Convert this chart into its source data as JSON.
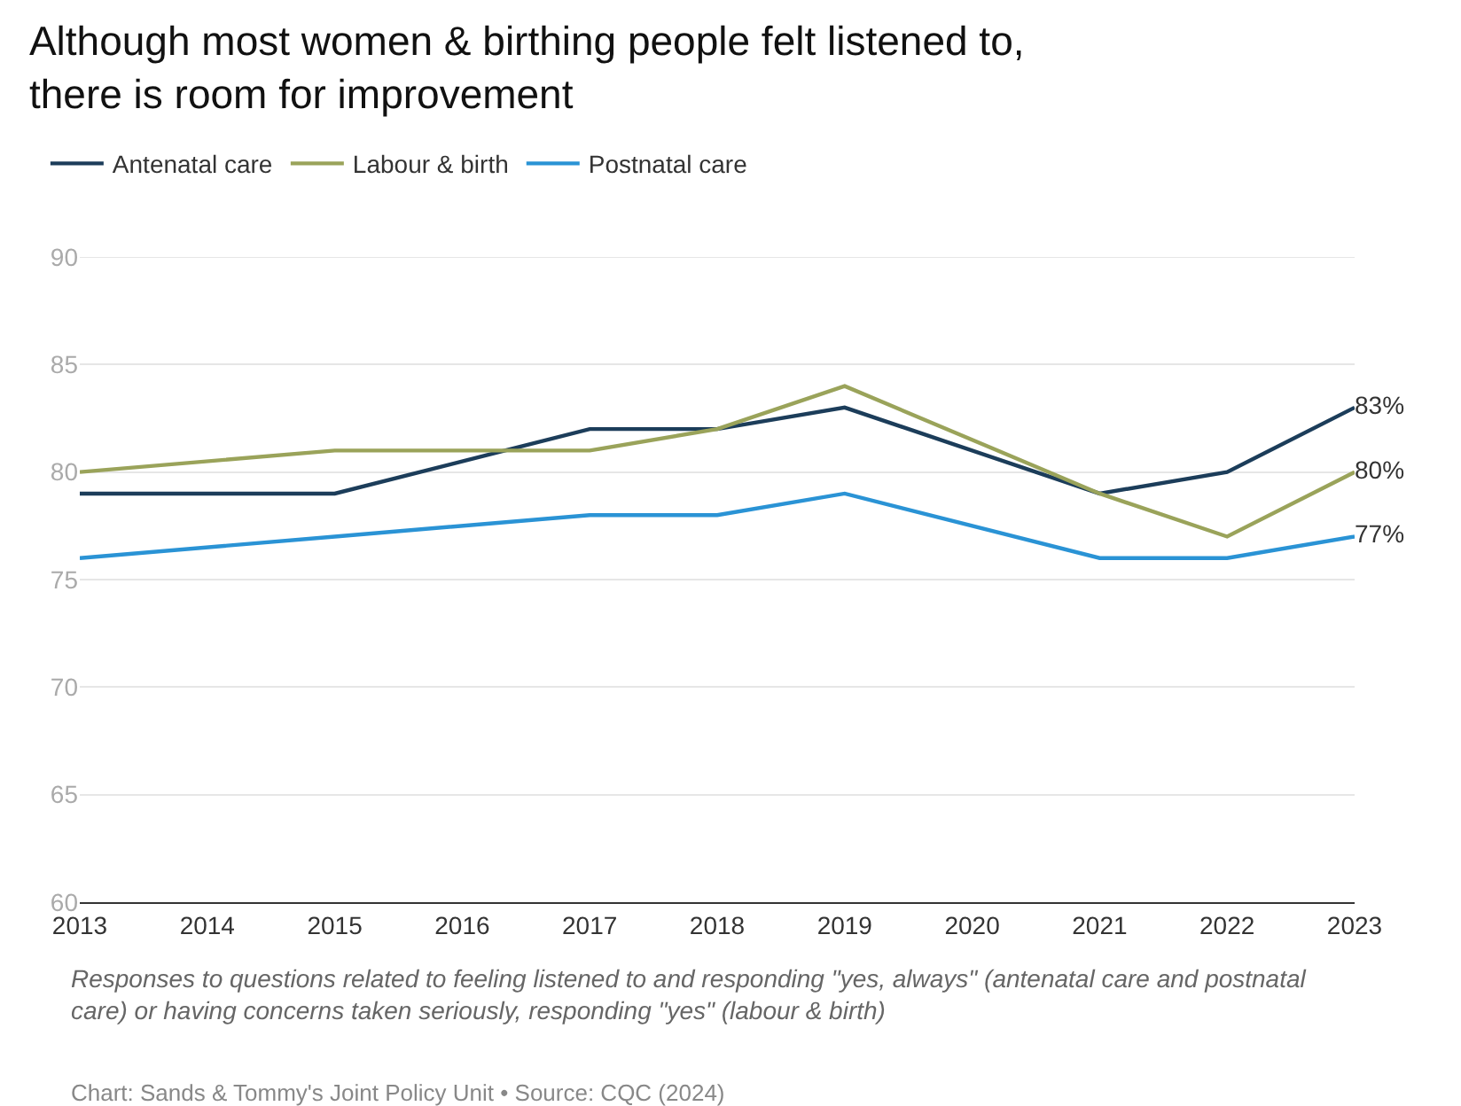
{
  "chart_data": {
    "type": "line",
    "title": "Although most women & birthing people felt listened to,\nthere is room for improvement",
    "x": [
      2013,
      2015,
      2017,
      2018,
      2019,
      2021,
      2022,
      2023
    ],
    "series": [
      {
        "name": "Antenatal care",
        "color": "#1c3d5a",
        "values": [
          79,
          79,
          82,
          82,
          83,
          79,
          80,
          83
        ],
        "value_labels": [
          null,
          null,
          null,
          null,
          null,
          null,
          null,
          "83%"
        ]
      },
      {
        "name": "Labour & birth",
        "color": "#9aa35a",
        "values": [
          80,
          81,
          81,
          82,
          84,
          79,
          77,
          80
        ],
        "value_labels": [
          null,
          null,
          null,
          null,
          null,
          null,
          null,
          "80%"
        ]
      },
      {
        "name": "Postnatal care",
        "color": "#2a93d5",
        "values": [
          76,
          77,
          78,
          78,
          79,
          76,
          76,
          77
        ],
        "value_labels": [
          null,
          null,
          null,
          null,
          null,
          null,
          null,
          "77%"
        ]
      }
    ],
    "xlim": [
      2013,
      2023
    ],
    "xticks": [
      2013,
      2014,
      2015,
      2016,
      2017,
      2018,
      2019,
      2020,
      2021,
      2022,
      2023
    ],
    "ylim": [
      60,
      90
    ],
    "yticks": [
      60,
      65,
      70,
      75,
      80,
      85,
      90
    ],
    "grid": "y",
    "legend": "top left",
    "marker": "none",
    "line_style": "solid",
    "annotations": [
      "Responses to questions related to feeling listened to and responding \"yes, always\" (antenatal care and postnatal\ncare) or having concerns taken seriously, responding \"yes\" (labour & birth)",
      "Chart: Sands & Tommy's Joint Policy Unit • Source: CQC (2024)"
    ]
  }
}
